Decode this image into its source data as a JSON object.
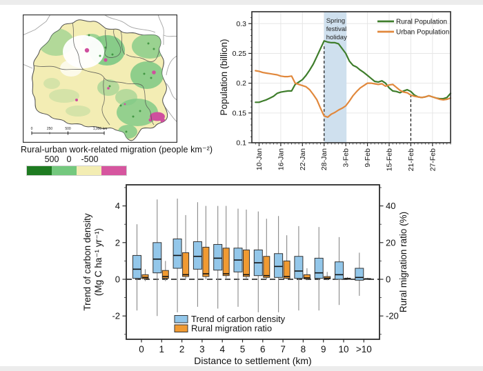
{
  "figure": {
    "background": "#ffffff",
    "letterbox": "#ececec"
  },
  "map_panel": {
    "caption": "Rural-urban work-related migration (people km⁻²)",
    "scalebar_labels": [
      "0",
      "250",
      "500",
      "1,000 km"
    ],
    "legend_labels": [
      "500",
      "0",
      "-500"
    ],
    "legend_colors": [
      "#1e7b21",
      "#74c87e",
      "#f3edb3",
      "#d6569f"
    ],
    "palette": {
      "base": "#f3edb4",
      "vegetation_green": "#7cc884",
      "dense_green": "#2e8a32",
      "city_magenta": "#cf4f9e",
      "no_data_white": "#ffffff",
      "boundary": "#4d4d4d",
      "neighbor_boundary": "#a3a3a3",
      "frame": "#333333"
    }
  },
  "chart_data": [
    {
      "id": "population_timeseries",
      "type": "line",
      "ylabel": "Population (billion)",
      "ylim": [
        0.1,
        0.32
      ],
      "yticks": [
        0.1,
        0.15,
        0.2,
        0.25,
        0.3
      ],
      "ytick_labels": [
        "0.1",
        "0.15",
        "0.2",
        "0.25",
        "0.3"
      ],
      "xlim": [
        -1,
        54
      ],
      "x_unit": "days, day 0 = 9-Jan",
      "xticks": [
        1,
        7,
        13,
        19,
        25,
        31,
        37,
        43,
        49
      ],
      "xtick_labels": [
        "10-Jan",
        "16-Jan",
        "22-Jan",
        "28-Jan",
        "3-Feb",
        "9-Feb",
        "15-Feb",
        "21-Feb",
        "27-Feb"
      ],
      "grid": true,
      "grid_color": "#e6e6e6",
      "band": {
        "label_lines": [
          "Spring",
          "festival",
          "holiday"
        ],
        "x_from": 19,
        "x_to": 25.2,
        "color": "#cfe0ee"
      },
      "dashed_lines": [
        {
          "x": 19,
          "y_top": 0.262
        },
        {
          "x": 43,
          "y_top": 0.181
        }
      ],
      "legend_position": "top-right",
      "series": [
        {
          "name": "Rural Population",
          "color": "#3e7d2b",
          "x_start_day": 0,
          "values": [
            0.168,
            0.168,
            0.17,
            0.172,
            0.175,
            0.178,
            0.183,
            0.185,
            0.186,
            0.187,
            0.187,
            0.198,
            0.202,
            0.206,
            0.213,
            0.222,
            0.232,
            0.245,
            0.258,
            0.271,
            0.269,
            0.268,
            0.268,
            0.266,
            0.258,
            0.25,
            0.237,
            0.23,
            0.227,
            0.222,
            0.218,
            0.213,
            0.208,
            0.203,
            0.202,
            0.204,
            0.2,
            0.192,
            0.187,
            0.186,
            0.184,
            0.187,
            0.189,
            0.186,
            0.18,
            0.177,
            0.176,
            0.177,
            0.179,
            0.177,
            0.175,
            0.174,
            0.174,
            0.176,
            0.183
          ]
        },
        {
          "name": "Urban Population",
          "color": "#e1883c",
          "x_start_day": 0,
          "values": [
            0.221,
            0.22,
            0.218,
            0.217,
            0.216,
            0.215,
            0.214,
            0.212,
            0.211,
            0.211,
            0.212,
            0.2,
            0.198,
            0.196,
            0.194,
            0.189,
            0.181,
            0.172,
            0.158,
            0.145,
            0.143,
            0.148,
            0.151,
            0.155,
            0.158,
            0.162,
            0.17,
            0.179,
            0.186,
            0.192,
            0.196,
            0.2,
            0.2,
            0.199,
            0.198,
            0.199,
            0.195,
            0.197,
            0.198,
            0.193,
            0.188,
            0.185,
            0.184,
            0.18,
            0.178,
            0.177,
            0.176,
            0.177,
            0.179,
            0.177,
            0.175,
            0.173,
            0.172,
            0.173,
            0.175
          ]
        }
      ]
    },
    {
      "id": "carbon_density_migration_boxplot",
      "type": "box",
      "categories": [
        "0",
        "1",
        "2",
        "3",
        "4",
        "5",
        "6",
        "7",
        "8",
        "9",
        "10",
        ">10"
      ],
      "xlabel": "Distance to settlement (km)",
      "left_axis": {
        "label_lines": [
          "Trend of carbon density",
          "(Mg C ha⁻¹ yr⁻¹)"
        ],
        "ticks": [
          -2,
          0,
          2,
          4
        ],
        "lim": [
          -3.3,
          5.15
        ]
      },
      "right_axis": {
        "label": "Rural migration ratio (%)",
        "ticks": [
          -20,
          0,
          20,
          40
        ],
        "lim": [
          -33,
          51.5
        ]
      },
      "zero_line_dashed": true,
      "box_values_order": "low_whisker,q1,median,q3,high_whisker",
      "series": [
        {
          "name": "Trend of carbon density",
          "axis": "left",
          "color": "#93c7ea",
          "boxes": [
            [
              -1.7,
              0.05,
              0.55,
              1.3,
              3.0
            ],
            [
              -2.0,
              0.35,
              1.1,
              2.0,
              4.35
            ],
            [
              -1.8,
              0.6,
              1.3,
              2.2,
              4.4
            ],
            [
              -1.5,
              0.55,
              1.25,
              2.05,
              4.2
            ],
            [
              -1.6,
              0.5,
              1.15,
              1.9,
              4.0
            ],
            [
              -1.5,
              0.4,
              1.05,
              1.7,
              3.85
            ],
            [
              -1.8,
              0.2,
              0.9,
              1.6,
              3.7
            ],
            [
              -1.8,
              0.1,
              0.7,
              1.4,
              3.45
            ],
            [
              -1.7,
              0.05,
              0.45,
              1.25,
              2.9
            ],
            [
              -1.7,
              0.05,
              0.35,
              1.15,
              2.85
            ],
            [
              -1.4,
              0.0,
              0.25,
              0.95,
              2.3
            ],
            [
              -0.9,
              -0.05,
              0.1,
              0.6,
              1.45
            ]
          ]
        },
        {
          "name": "Rural migration ratio",
          "axis": "right",
          "color": "#f09a32",
          "boxes": [
            [
              -1.0,
              0.3,
              1.0,
              2.5,
              5.5
            ],
            [
              -1.0,
              0.5,
              1.5,
              4.8,
              10.0
            ],
            [
              0.0,
              1.5,
              2.5,
              14.5,
              35.0
            ],
            [
              0.0,
              1.5,
              3.0,
              17.5,
              40.0
            ],
            [
              0.0,
              2.0,
              3.0,
              17.0,
              40.0
            ],
            [
              0.0,
              1.5,
              2.5,
              16.0,
              38.0
            ],
            [
              0.0,
              1.0,
              2.0,
              12.5,
              33.0
            ],
            [
              0.0,
              0.5,
              1.5,
              10.0,
              24.0
            ],
            [
              -0.5,
              0.2,
              0.8,
              2.5,
              6.0
            ],
            [
              -0.5,
              0.2,
              0.6,
              1.5,
              4.0
            ],
            [
              -0.3,
              0.0,
              0.2,
              0.6,
              1.2
            ],
            [
              -0.3,
              0.0,
              0.1,
              0.4,
              0.8
            ]
          ]
        }
      ]
    }
  ]
}
